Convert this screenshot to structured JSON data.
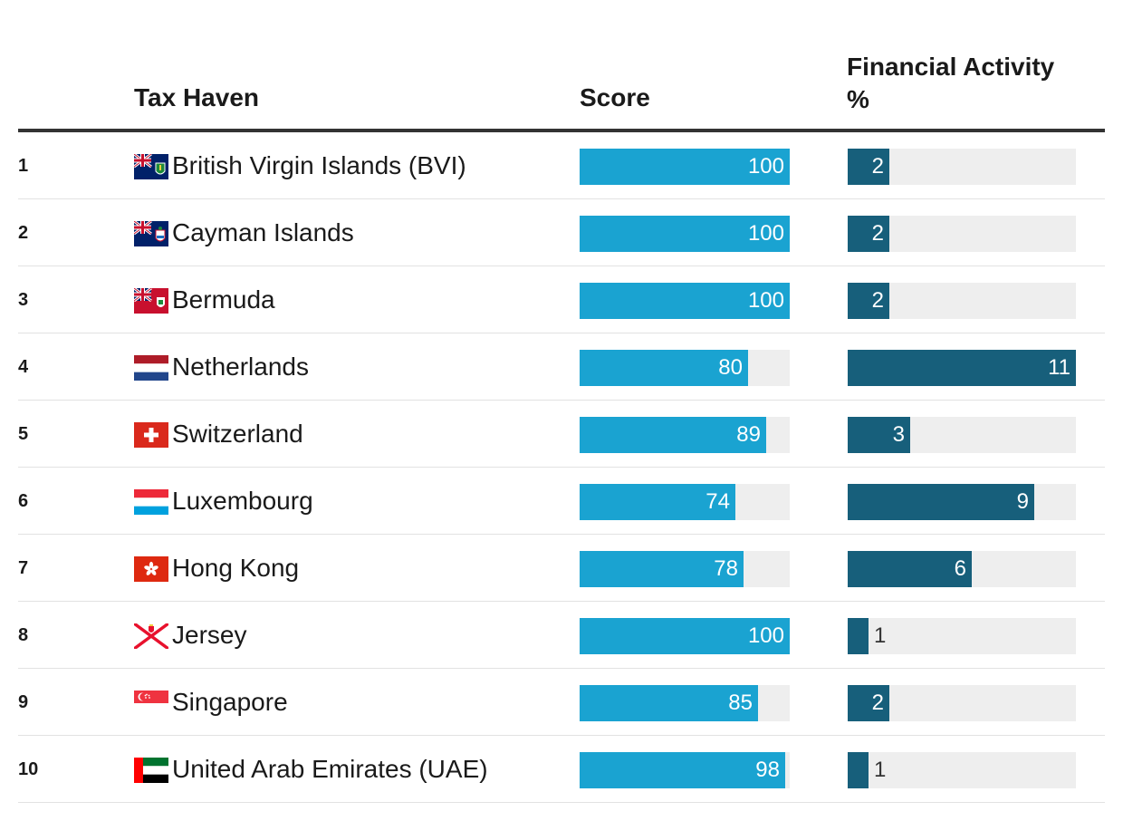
{
  "colors": {
    "score_bar": "#1aa3d1",
    "financial_bar": "#175f7b",
    "track": "#eeeeee"
  },
  "chart_data": {
    "type": "table",
    "columns": [
      "",
      "Tax Haven",
      "Score",
      "Financial Activity %"
    ],
    "score_max": 100,
    "financial_max": 11,
    "rows": [
      {
        "rank": "1",
        "name": "British Virgin Islands (BVI)",
        "flag": "bvi-flag",
        "score": 100,
        "financial": 2
      },
      {
        "rank": "2",
        "name": "Cayman Islands",
        "flag": "cayman-flag",
        "score": 100,
        "financial": 2
      },
      {
        "rank": "3",
        "name": "Bermuda",
        "flag": "bermuda-flag",
        "score": 100,
        "financial": 2
      },
      {
        "rank": "4",
        "name": "Netherlands",
        "flag": "netherlands-flag",
        "score": 80,
        "financial": 11
      },
      {
        "rank": "5",
        "name": "Switzerland",
        "flag": "switzerland-flag",
        "score": 89,
        "financial": 3
      },
      {
        "rank": "6",
        "name": "Luxembourg",
        "flag": "luxembourg-flag",
        "score": 74,
        "financial": 9
      },
      {
        "rank": "7",
        "name": "Hong Kong",
        "flag": "hong-kong-flag",
        "score": 78,
        "financial": 6
      },
      {
        "rank": "8",
        "name": "Jersey",
        "flag": "jersey-flag",
        "score": 100,
        "financial": 1
      },
      {
        "rank": "9",
        "name": "Singapore",
        "flag": "singapore-flag",
        "score": 85,
        "financial": 2
      },
      {
        "rank": "10",
        "name": "United Arab Emirates (UAE)",
        "flag": "uae-flag",
        "score": 98,
        "financial": 1
      }
    ]
  },
  "header": {
    "rank": "",
    "name": "Tax Haven",
    "score": "Score",
    "financial": "Financial Activity %"
  }
}
